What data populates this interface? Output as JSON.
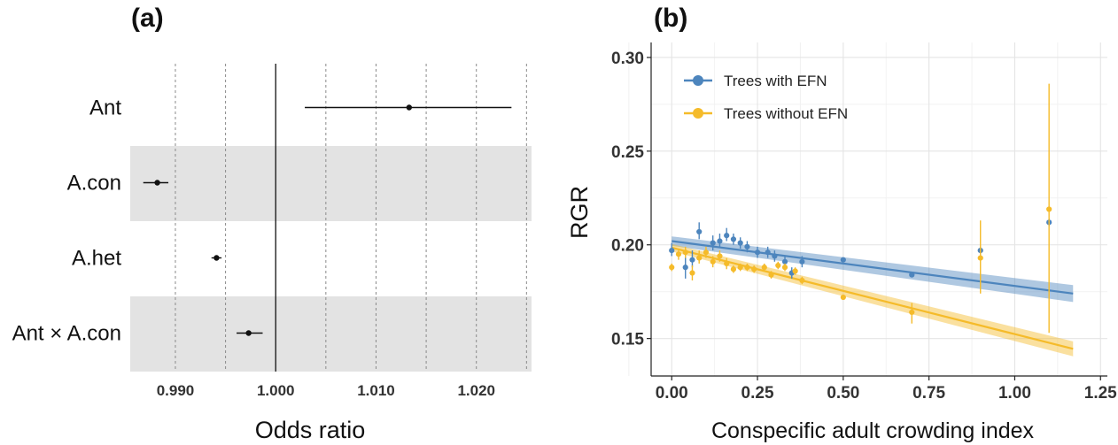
{
  "chart_data": [
    {
      "panel": "(a)",
      "type": "forest",
      "xlabel": "Odds ratio",
      "xlim": [
        0.9855,
        1.0255
      ],
      "xticks": [
        0.99,
        1.0,
        1.01,
        1.02
      ],
      "xtick_labels": [
        "0.990",
        "1.000",
        "1.010",
        "1.020"
      ],
      "grid_at": [
        0.99,
        0.995,
        1.005,
        1.01,
        1.015,
        1.02,
        1.025
      ],
      "reference_line": 1.0,
      "terms": [
        {
          "label": "Ant",
          "estimate": 1.0133,
          "lower": 1.0029,
          "upper": 1.0235,
          "shaded": false
        },
        {
          "label": "A.con",
          "estimate": 0.9882,
          "lower": 0.9868,
          "upper": 0.9893,
          "shaded": true
        },
        {
          "label": "A.het",
          "estimate": 0.9941,
          "lower": 0.9936,
          "upper": 0.9946,
          "shaded": false
        },
        {
          "label": "Ant × A.con",
          "estimate": 0.9973,
          "lower": 0.9961,
          "upper": 0.9987,
          "shaded": true
        }
      ]
    },
    {
      "panel": "(b)",
      "type": "scatter",
      "xlabel": "Conspecific adult crowding index",
      "ylabel": "RGR",
      "xlim": [
        -0.06,
        1.27
      ],
      "ylim": [
        0.13,
        0.308
      ],
      "xticks": [
        0.0,
        0.25,
        0.5,
        0.75,
        1.0,
        1.25
      ],
      "xtick_labels": [
        "0.00",
        "0.25",
        "0.50",
        "0.75",
        "1.00",
        "1.25"
      ],
      "yticks": [
        0.15,
        0.2,
        0.25,
        0.3
      ],
      "ytick_labels": [
        "0.15",
        "0.20",
        "0.25",
        "0.30"
      ],
      "legend_position": "top-left",
      "series": [
        {
          "name": "Trees with EFN",
          "color": "#4d85bd",
          "fit": {
            "x": [
              0.0,
              1.17
            ],
            "y": [
              0.202,
              0.174
            ],
            "band_halfwidth": [
              0.0025,
              0.0045
            ]
          },
          "points": [
            {
              "x": 0.0,
              "y": 0.197,
              "lo": 0.194,
              "hi": 0.201
            },
            {
              "x": 0.04,
              "y": 0.188,
              "lo": 0.182,
              "hi": 0.195
            },
            {
              "x": 0.06,
              "y": 0.192,
              "lo": 0.188,
              "hi": 0.197
            },
            {
              "x": 0.08,
              "y": 0.207,
              "lo": 0.203,
              "hi": 0.212
            },
            {
              "x": 0.12,
              "y": 0.201,
              "lo": 0.197,
              "hi": 0.205
            },
            {
              "x": 0.14,
              "y": 0.202,
              "lo": 0.199,
              "hi": 0.206
            },
            {
              "x": 0.16,
              "y": 0.205,
              "lo": 0.202,
              "hi": 0.209
            },
            {
              "x": 0.18,
              "y": 0.203,
              "lo": 0.2,
              "hi": 0.206
            },
            {
              "x": 0.2,
              "y": 0.201,
              "lo": 0.198,
              "hi": 0.204
            },
            {
              "x": 0.22,
              "y": 0.199,
              "lo": 0.196,
              "hi": 0.202
            },
            {
              "x": 0.25,
              "y": 0.196,
              "lo": 0.193,
              "hi": 0.199
            },
            {
              "x": 0.28,
              "y": 0.196,
              "lo": 0.193,
              "hi": 0.199
            },
            {
              "x": 0.3,
              "y": 0.194,
              "lo": 0.191,
              "hi": 0.197
            },
            {
              "x": 0.33,
              "y": 0.191,
              "lo": 0.188,
              "hi": 0.194
            },
            {
              "x": 0.35,
              "y": 0.185,
              "lo": 0.182,
              "hi": 0.188
            },
            {
              "x": 0.38,
              "y": 0.191,
              "lo": 0.188,
              "hi": 0.194
            },
            {
              "x": 0.5,
              "y": 0.192,
              "lo": 0.191,
              "hi": 0.193
            },
            {
              "x": 0.7,
              "y": 0.184,
              "lo": 0.183,
              "hi": 0.185
            },
            {
              "x": 0.9,
              "y": 0.197,
              "lo": 0.195,
              "hi": 0.199
            },
            {
              "x": 1.1,
              "y": 0.212,
              "lo": 0.21,
              "hi": 0.214
            }
          ]
        },
        {
          "name": "Trees without EFN",
          "color": "#f5bb2a",
          "fit": {
            "x": [
              0.0,
              1.17
            ],
            "y": [
              0.1985,
              0.1445
            ],
            "band_halfwidth": [
              0.002,
              0.004
            ]
          },
          "points": [
            {
              "x": 0.0,
              "y": 0.188,
              "lo": 0.186,
              "hi": 0.19
            },
            {
              "x": 0.02,
              "y": 0.195,
              "lo": 0.192,
              "hi": 0.198
            },
            {
              "x": 0.04,
              "y": 0.196,
              "lo": 0.193,
              "hi": 0.199
            },
            {
              "x": 0.06,
              "y": 0.185,
              "lo": 0.181,
              "hi": 0.189
            },
            {
              "x": 0.08,
              "y": 0.193,
              "lo": 0.19,
              "hi": 0.197
            },
            {
              "x": 0.1,
              "y": 0.196,
              "lo": 0.193,
              "hi": 0.199
            },
            {
              "x": 0.12,
              "y": 0.191,
              "lo": 0.188,
              "hi": 0.194
            },
            {
              "x": 0.14,
              "y": 0.194,
              "lo": 0.191,
              "hi": 0.197
            },
            {
              "x": 0.16,
              "y": 0.19,
              "lo": 0.187,
              "hi": 0.193
            },
            {
              "x": 0.18,
              "y": 0.187,
              "lo": 0.185,
              "hi": 0.189
            },
            {
              "x": 0.2,
              "y": 0.188,
              "lo": 0.186,
              "hi": 0.19
            },
            {
              "x": 0.22,
              "y": 0.188,
              "lo": 0.186,
              "hi": 0.19
            },
            {
              "x": 0.24,
              "y": 0.187,
              "lo": 0.185,
              "hi": 0.189
            },
            {
              "x": 0.27,
              "y": 0.188,
              "lo": 0.186,
              "hi": 0.19
            },
            {
              "x": 0.29,
              "y": 0.184,
              "lo": 0.182,
              "hi": 0.186
            },
            {
              "x": 0.31,
              "y": 0.189,
              "lo": 0.187,
              "hi": 0.191
            },
            {
              "x": 0.33,
              "y": 0.188,
              "lo": 0.186,
              "hi": 0.19
            },
            {
              "x": 0.36,
              "y": 0.186,
              "lo": 0.184,
              "hi": 0.188
            },
            {
              "x": 0.38,
              "y": 0.181,
              "lo": 0.179,
              "hi": 0.183
            },
            {
              "x": 0.5,
              "y": 0.172,
              "lo": 0.171,
              "hi": 0.173
            },
            {
              "x": 0.7,
              "y": 0.164,
              "lo": 0.158,
              "hi": 0.169
            },
            {
              "x": 0.9,
              "y": 0.193,
              "lo": 0.174,
              "hi": 0.213
            },
            {
              "x": 1.1,
              "y": 0.219,
              "lo": 0.153,
              "hi": 0.286
            }
          ]
        }
      ]
    }
  ]
}
